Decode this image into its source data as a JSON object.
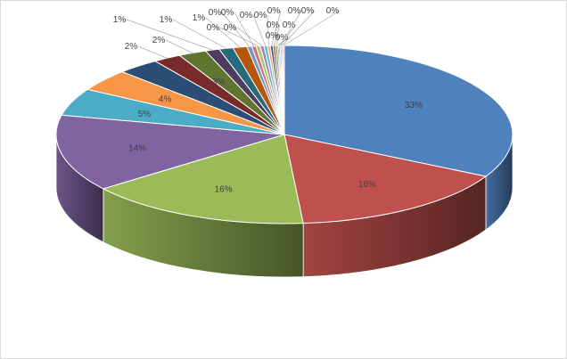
{
  "chart_data": {
    "type": "pie",
    "style": "3d",
    "legend": "none",
    "slices": [
      {
        "label": "33%",
        "value": 33,
        "color": "#4F81BD"
      },
      {
        "label": "16%",
        "value": 16,
        "color": "#C0504D"
      },
      {
        "label": "16%",
        "value": 16,
        "color": "#9BBB59"
      },
      {
        "label": "14%",
        "value": 14,
        "color": "#8064A2"
      },
      {
        "label": "5%",
        "value": 5,
        "color": "#4BACC6"
      },
      {
        "label": "4%",
        "value": 4,
        "color": "#F79646"
      },
      {
        "label": "3%",
        "value": 3,
        "color": "#2C4D75"
      },
      {
        "label": "2%",
        "value": 2,
        "color": "#772C2A"
      },
      {
        "label": "2%",
        "value": 2,
        "color": "#5F7530"
      },
      {
        "label": "1%",
        "value": 1,
        "color": "#4D3B62"
      },
      {
        "label": "1%",
        "value": 1,
        "color": "#276A7C"
      },
      {
        "label": "1%",
        "value": 1,
        "color": "#B65708"
      },
      {
        "label": "0%",
        "value": 0.35,
        "color": "#729ACA"
      },
      {
        "label": "0%",
        "value": 0.3,
        "color": "#CD7371"
      },
      {
        "label": "0%",
        "value": 0.3,
        "color": "#AFC97A"
      },
      {
        "label": "0%",
        "value": 0.25,
        "color": "#9983B5"
      },
      {
        "label": "0%",
        "value": 0.25,
        "color": "#6FBDD1"
      },
      {
        "label": "0%",
        "value": 0.2,
        "color": "#F9AB6B"
      },
      {
        "label": "0%",
        "value": 0.2,
        "color": "#3A679C"
      },
      {
        "label": "0%",
        "value": 0.15,
        "color": "#9E3B38"
      },
      {
        "label": "0%",
        "value": 0.15,
        "color": "#7F9C40"
      },
      {
        "label": "0%",
        "value": 0.1,
        "color": "#664F83"
      },
      {
        "label": "0%",
        "value": 0.1,
        "color": "#358EA5"
      },
      {
        "label": "0%",
        "value": 0.1,
        "color": "#F28223"
      },
      {
        "label": "0%",
        "value": 0.1,
        "color": "#95B3D7"
      },
      {
        "label": "0%",
        "value": 0.1,
        "color": "#D99694"
      }
    ]
  }
}
